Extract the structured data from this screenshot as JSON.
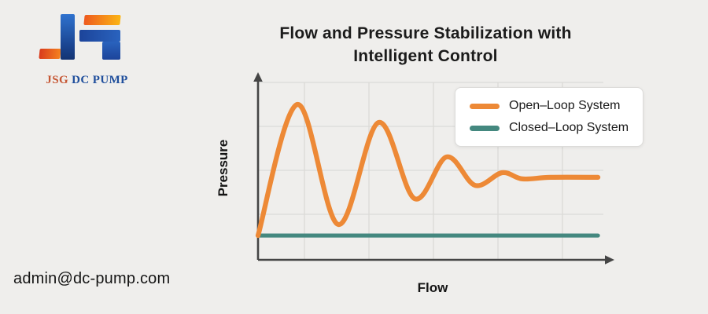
{
  "logo": {
    "text_primary": "JSG",
    "text_secondary": "DC PUMP"
  },
  "title": {
    "line1": "Flow and Pressure Stabilization with",
    "line2": "Intelligent Control"
  },
  "footer": {
    "email": "admin@dc-pump.com"
  },
  "colors": {
    "background": "#EFEEEC",
    "grid": "#DBDAD8",
    "axis": "#454545",
    "open_loop": "#ED8936",
    "closed_loop": "#44887F",
    "legend_background": "#FFFFFF"
  },
  "chart_data": {
    "type": "line",
    "title": "Flow and Pressure Stabilization with Intelligent Control",
    "xlabel": "Flow",
    "ylabel": "Pressure",
    "xlim": [
      0,
      10
    ],
    "ylim": [
      0,
      10
    ],
    "grid": true,
    "axis_tick_labels_visible": false,
    "legend_position": "upper right",
    "series": [
      {
        "name": "Open–Loop System",
        "color": "#ED8936",
        "shape": "damped-oscillation",
        "points": [
          [
            0,
            1.37
          ],
          [
            1.14,
            8.76
          ],
          [
            2.32,
            1.99
          ],
          [
            3.48,
            7.74
          ],
          [
            4.52,
            3.45
          ],
          [
            5.45,
            5.8
          ],
          [
            6.27,
            4.2
          ],
          [
            7.05,
            4.91
          ],
          [
            7.64,
            4.56
          ],
          [
            8.45,
            4.65
          ],
          [
            9.82,
            4.65
          ]
        ]
      },
      {
        "name": "Closed–Loop System",
        "color": "#44887F",
        "shape": "flat",
        "points": [
          [
            0,
            1.37
          ],
          [
            9.82,
            1.37
          ]
        ]
      }
    ]
  }
}
